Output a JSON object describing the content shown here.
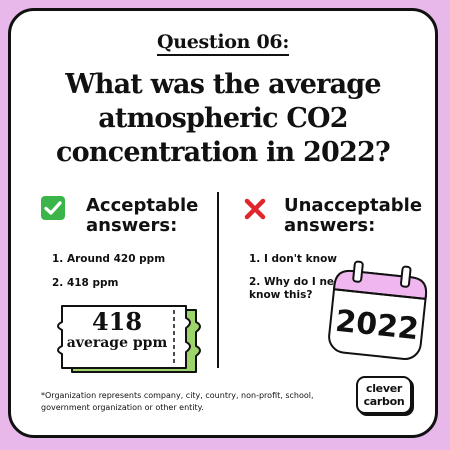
{
  "question_label": "Question 06:",
  "headline": "What was the average atmospheric CO2 concentration in 2022?",
  "acceptable": {
    "heading_line1": "Acceptable",
    "heading_line2": "answers:",
    "icon": "check-mark-icon",
    "items": [
      "1. Around 420 ppm",
      "2. 418 ppm"
    ]
  },
  "unacceptable": {
    "heading_line1": "Unacceptable",
    "heading_line2": "answers:",
    "icon": "cross-mark-icon",
    "items": [
      "1. I don't know",
      "2. Why do I need to know this?"
    ]
  },
  "ticket": {
    "value": "418",
    "unit": "average ppm"
  },
  "calendar": {
    "year": "2022"
  },
  "footnote": "*Organization represents company, city, country, non-profit, school, government organization or other entity.",
  "logo": {
    "line1": "clever",
    "line2": "carbon"
  },
  "colors": {
    "background": "#e8b8ea",
    "card": "#ffffff",
    "ticket_accent": "#9fd36b",
    "calendar_header": "#f0b6ef",
    "check": "#3bb54a",
    "cross": "#e0262b"
  }
}
